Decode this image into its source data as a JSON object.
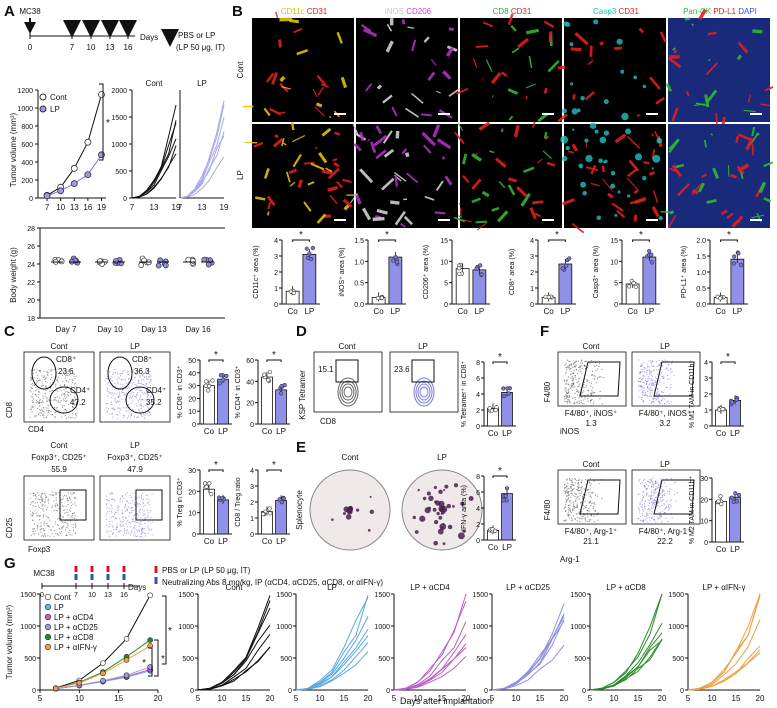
{
  "panels": [
    "A",
    "B",
    "C",
    "D",
    "E",
    "F",
    "G"
  ],
  "panelA": {
    "schedule": {
      "start": "MC38",
      "treatment": "PBS or LP",
      "dose": "(LP 50 μg, IT)",
      "axis": "Days",
      "days": [
        "0",
        "7",
        "10",
        "13",
        "16"
      ]
    },
    "tumor": {
      "ylabel": "Tumor volume (mm³)",
      "legend": [
        "Cont",
        "LP"
      ],
      "star": "*",
      "yticks": [
        "0",
        "200",
        "400",
        "600",
        "800",
        "1000",
        "1200"
      ],
      "xticks": [
        "7",
        "10",
        "13",
        "16",
        "19"
      ],
      "small_titles": [
        "Cont",
        "LP"
      ],
      "small_yticks": [
        "0",
        "500",
        "1000",
        "1500",
        "2000"
      ],
      "small_xticks": [
        "7",
        "13",
        "19"
      ]
    },
    "weight": {
      "ylabel": "Body weight (g)",
      "yticks": [
        "18",
        "20",
        "22",
        "24",
        "26",
        "28"
      ],
      "groups": [
        "Day 7",
        "Day 10",
        "Day 13",
        "Day 16"
      ]
    }
  },
  "panelB": {
    "stain_titles": [
      {
        "a": "CD11c",
        "b": "CD31",
        "c": "",
        "ca": "#e6c000",
        "cb": "#e01e1e",
        "cc": "#ffffff"
      },
      {
        "a": "iNOS",
        "b": "CD206",
        "c": "",
        "ca": "#c8c8c8",
        "cb": "#d040d0",
        "cc": "#ffffff"
      },
      {
        "a": "CD8",
        "b": "CD31",
        "c": "",
        "ca": "#2eb82e",
        "cb": "#e01e1e",
        "cc": "#ffffff"
      },
      {
        "a": "Casp3",
        "b": "CD31",
        "c": "",
        "ca": "#20c0c0",
        "cb": "#e01e1e",
        "cc": "#ffffff"
      },
      {
        "a": "Pan-CK",
        "b": "PD-L1",
        "c": "DAPI",
        "ca": "#2eb82e",
        "cb": "#e01e1e",
        "cc": "#3355ff"
      }
    ],
    "rows": [
      "Cont",
      "LP"
    ],
    "bar_ylabels": [
      "CD11c⁺ area (%)",
      "iNOS⁺ area (%)",
      "CD206⁺ area (%)",
      "CD8⁺ area (%)",
      "Casp3⁺ area (%)",
      "PD-L1⁺ area (%)"
    ],
    "bar_yticks": [
      [
        "0",
        "1",
        "2",
        "3",
        "4"
      ],
      [
        "0.0",
        "0.5",
        "1.0",
        "1.5"
      ],
      [
        "0",
        "5",
        "10",
        "15"
      ],
      [
        "0",
        "1",
        "2",
        "3",
        "4"
      ],
      [
        "0",
        "5",
        "10",
        "15"
      ],
      [
        "0.0",
        "0.5",
        "1.0",
        "1.5",
        "2.0"
      ]
    ],
    "xcats": [
      "Co",
      "LP"
    ],
    "star": "*"
  },
  "panelC": {
    "flow_top": {
      "titles": [
        "Cont",
        "LP"
      ],
      "gates": [
        [
          "CD8⁺",
          "23.6",
          "CD4⁺",
          "47.2"
        ],
        [
          "CD8⁺",
          "36.3",
          "CD4⁺",
          "35.2"
        ]
      ],
      "xlabel": "CD4",
      "ylabel": "CD8"
    },
    "flow_bottom": {
      "titles": [
        "Cont",
        "LP"
      ],
      "gates": [
        [
          "Foxp3⁺, CD25⁺",
          "55.9"
        ],
        [
          "Foxp3⁺, CD25⁺",
          "47.9"
        ]
      ],
      "xlabel": "Foxp3",
      "ylabel": "CD25"
    },
    "bars": {
      "ylabels": [
        "% CD8⁺ in CD3⁺",
        "% CD4⁺ in CD3⁺",
        "% Treg in CD3⁺",
        "CD8 / Treg ratio"
      ],
      "yticks": [
        [
          "0",
          "10",
          "20",
          "30",
          "40",
          "50"
        ],
        [
          "0",
          "20",
          "40",
          "60"
        ],
        [
          "0",
          "10",
          "20",
          "30"
        ],
        [
          "0",
          "1",
          "2",
          "3",
          "4"
        ]
      ]
    }
  },
  "panelD": {
    "titles": [
      "Cont",
      "LP"
    ],
    "values": [
      "15.1",
      "23.6"
    ],
    "ylabel": "KSP Tetramer",
    "xlabel": "CD8",
    "bar_ylabel": "% Tetramer⁺ in CD8⁺",
    "bar_yticks": [
      "0",
      "2",
      "4",
      "6",
      "8"
    ]
  },
  "panelE": {
    "titles": [
      "Cont",
      "LP"
    ],
    "side": "Splenocyte",
    "bar_ylabel": "IFN-γ area (%)",
    "bar_yticks": [
      "0",
      "2",
      "4",
      "6",
      "8"
    ]
  },
  "panelF": {
    "top": {
      "titles": [
        "Cont",
        "LP"
      ],
      "labels": [
        "F4/80⁺, iNOS⁺",
        "F4/80⁺, iNOS⁺"
      ],
      "values": [
        "1.3",
        "3.2"
      ],
      "xlabel": "iNOS",
      "ylabel": "F4/80",
      "bar_ylabel": "% M1 TAM in CD11b⁺",
      "bar_yticks": [
        "0",
        "1",
        "2",
        "3",
        "4"
      ]
    },
    "bottom": {
      "titles": [
        "Cont",
        "LP"
      ],
      "labels": [
        "F4/80⁺, Arg-1⁺",
        "F4/80⁺, Arg-1⁺"
      ],
      "values": [
        "21.1",
        "22.2"
      ],
      "xlabel": "Arg-1",
      "ylabel": "F4/80",
      "bar_ylabel": "% M2 TAM in CD11b⁺",
      "bar_yticks": [
        "0",
        "10",
        "20",
        "30"
      ]
    }
  },
  "panelG": {
    "schedule": {
      "start": "MC38",
      "treat1": "PBS or LP (LP 50 μg, IT)",
      "treat2": "Neutralizing Abs 8 mg/kg, IP (αCD4, αCD25, αCD8, or αIFN-γ)",
      "days": [
        "0",
        "7",
        "10",
        "13",
        "16"
      ],
      "axis": "Days"
    },
    "legend": [
      "Cont",
      "LP",
      "LP + αCD4",
      "LP + αCD25",
      "LP + αCD8",
      "LP + αIFN-γ"
    ],
    "legend_colors": [
      "#ffffff",
      "#6cb4e4",
      "#c060c8",
      "#9a9ae8",
      "#2a8a2a",
      "#f0a040"
    ],
    "ylabel": "Tumor volume (mm³)",
    "yticks": [
      "0",
      "500",
      "1000",
      "1500"
    ],
    "xticks": [
      "5",
      "10",
      "15",
      "20"
    ],
    "small_titles": [
      "Cont",
      "LP",
      "LP + αCD4",
      "LP + αCD25",
      "LP + αCD8",
      "LP + αIFN-γ"
    ],
    "xlabel": "Days after implantation",
    "stars": [
      "*",
      "*",
      "*"
    ]
  },
  "chart_data": [
    {
      "type": "line",
      "title": "",
      "xlabel": "",
      "ylabel": "Tumor volume (mm³)",
      "x": [
        7,
        10,
        13,
        16,
        19
      ],
      "ylim": [
        0,
        1200
      ],
      "series": [
        {
          "name": "Cont",
          "values": [
            30,
            120,
            330,
            620,
            1150
          ]
        },
        {
          "name": "LP",
          "values": [
            25,
            80,
            160,
            260,
            480
          ]
        }
      ]
    },
    {
      "type": "bar",
      "categories": [
        "Co",
        "LP"
      ],
      "ylabel": "CD11c⁺ area (%)",
      "values": [
        0.8,
        3.1
      ],
      "ylim": [
        0,
        4
      ]
    },
    {
      "type": "bar",
      "categories": [
        "Co",
        "LP"
      ],
      "ylabel": "iNOS⁺ area (%)",
      "values": [
        0.15,
        1.1
      ],
      "ylim": [
        0,
        1.5
      ]
    },
    {
      "type": "bar",
      "categories": [
        "Co",
        "LP"
      ],
      "ylabel": "CD206⁺ area (%)",
      "values": [
        8.3,
        8.0
      ],
      "ylim": [
        0,
        15
      ]
    },
    {
      "type": "bar",
      "categories": [
        "Co",
        "LP"
      ],
      "ylabel": "CD8⁺ area (%)",
      "values": [
        0.4,
        2.5
      ],
      "ylim": [
        0,
        4
      ]
    },
    {
      "type": "bar",
      "categories": [
        "Co",
        "LP"
      ],
      "ylabel": "Casp3⁺ area (%)",
      "values": [
        4.7,
        11
      ],
      "ylim": [
        0,
        15
      ]
    },
    {
      "type": "bar",
      "categories": [
        "Co",
        "LP"
      ],
      "ylabel": "PD-L1⁺ area (%)",
      "values": [
        0.2,
        1.4
      ],
      "ylim": [
        0,
        2
      ]
    },
    {
      "type": "bar",
      "categories": [
        "Co",
        "LP"
      ],
      "ylabel": "% CD8⁺ in CD3⁺",
      "values": [
        30,
        35
      ],
      "ylim": [
        0,
        50
      ]
    },
    {
      "type": "bar",
      "categories": [
        "Co",
        "LP"
      ],
      "ylabel": "% CD4⁺ in CD3⁺",
      "values": [
        44,
        32
      ],
      "ylim": [
        0,
        60
      ]
    },
    {
      "type": "bar",
      "categories": [
        "Co",
        "LP"
      ],
      "ylabel": "% Treg in CD3⁺",
      "values": [
        21,
        16
      ],
      "ylim": [
        0,
        30
      ]
    },
    {
      "type": "bar",
      "categories": [
        "Co",
        "LP"
      ],
      "ylabel": "CD8 / Treg ratio",
      "values": [
        1.4,
        2.1
      ],
      "ylim": [
        0,
        4
      ]
    },
    {
      "type": "bar",
      "categories": [
        "Co",
        "LP"
      ],
      "ylabel": "% Tetramer⁺ in CD8⁺",
      "values": [
        2.2,
        4.2
      ],
      "ylim": [
        0,
        8
      ]
    },
    {
      "type": "bar",
      "categories": [
        "Co",
        "LP"
      ],
      "ylabel": "IFN-γ area (%)",
      "values": [
        1.2,
        5.8
      ],
      "ylim": [
        0,
        8
      ]
    },
    {
      "type": "bar",
      "categories": [
        "Co",
        "LP"
      ],
      "ylabel": "% M1 TAM in CD11b⁺",
      "values": [
        1.0,
        1.6
      ],
      "ylim": [
        0,
        4
      ]
    },
    {
      "type": "bar",
      "categories": [
        "Co",
        "LP"
      ],
      "ylabel": "% M2 TAM in CD11b⁺",
      "values": [
        19,
        21
      ],
      "ylim": [
        0,
        30
      ]
    },
    {
      "type": "line",
      "ylabel": "Tumor volume (mm³)",
      "xlabel": "Days after implantation",
      "x": [
        7,
        10,
        13,
        16,
        19
      ],
      "ylim": [
        0,
        1500
      ],
      "series": [
        {
          "name": "Cont",
          "values": [
            30,
            150,
            420,
            800,
            1480
          ]
        },
        {
          "name": "LP",
          "values": [
            20,
            70,
            130,
            200,
            300
          ]
        },
        {
          "name": "LP + αCD4",
          "values": [
            20,
            70,
            140,
            210,
            320
          ]
        },
        {
          "name": "LP + αCD25",
          "values": [
            20,
            75,
            145,
            230,
            360
          ]
        },
        {
          "name": "LP + αCD8",
          "values": [
            25,
            120,
            280,
            520,
            780
          ]
        },
        {
          "name": "LP + αIFN-γ",
          "values": [
            25,
            110,
            260,
            470,
            690
          ]
        }
      ]
    }
  ]
}
